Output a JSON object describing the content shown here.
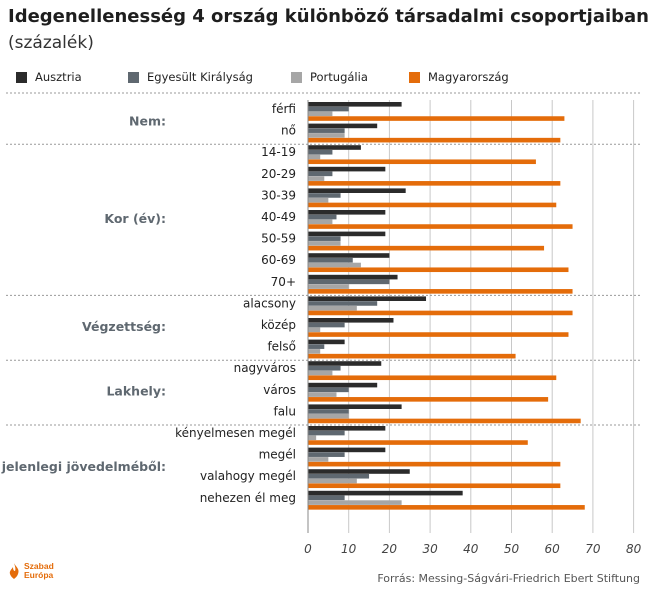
{
  "title": "Idegenellenesség 4 ország különböző társadalmi csoportjaiban",
  "subtitle": "(százalék)",
  "source": "Forrás: Messing-Ságvári-Friedrich Ebert Stiftung",
  "logo": {
    "line1": "Szabad",
    "line2": "Európa"
  },
  "chart_data": {
    "type": "bar",
    "orientation": "horizontal",
    "xlim": [
      0,
      80
    ],
    "xticks": [
      "0",
      "10",
      "20",
      "30",
      "40",
      "50",
      "60",
      "70",
      "80"
    ],
    "grid": true,
    "legend_position": "top",
    "series": [
      {
        "name": "Ausztria",
        "color": "#2b2b2b"
      },
      {
        "name": "Egyesült Királyság",
        "color": "#5f6870"
      },
      {
        "name": "Portugália",
        "color": "#a6a6a6"
      },
      {
        "name": "Magyarország",
        "color": "#e46c0a"
      }
    ],
    "groups": [
      {
        "label": "Nem:",
        "categories": [
          {
            "label": "férfi",
            "values": [
              23,
              10,
              6,
              63
            ]
          },
          {
            "label": "nő",
            "values": [
              17,
              9,
              9,
              62
            ]
          }
        ]
      },
      {
        "label": "Kor (év):",
        "categories": [
          {
            "label": "14-19",
            "values": [
              13,
              6,
              3,
              56
            ]
          },
          {
            "label": "20-29",
            "values": [
              19,
              6,
              4,
              62
            ]
          },
          {
            "label": "30-39",
            "values": [
              24,
              8,
              5,
              61
            ]
          },
          {
            "label": "40-49",
            "values": [
              19,
              7,
              6,
              65
            ]
          },
          {
            "label": "50-59",
            "values": [
              19,
              8,
              8,
              58
            ]
          },
          {
            "label": "60-69",
            "values": [
              20,
              11,
              13,
              64
            ]
          },
          {
            "label": "70+",
            "values": [
              22,
              20,
              10,
              65
            ]
          }
        ]
      },
      {
        "label": "Végzettség:",
        "categories": [
          {
            "label": "alacsony",
            "values": [
              29,
              17,
              12,
              65
            ]
          },
          {
            "label": "közép",
            "values": [
              21,
              9,
              3,
              64
            ]
          },
          {
            "label": "felső",
            "values": [
              9,
              4,
              3,
              51
            ]
          }
        ]
      },
      {
        "label": "Lakhely:",
        "categories": [
          {
            "label": "nagyváros",
            "values": [
              18,
              8,
              6,
              61
            ]
          },
          {
            "label": "város",
            "values": [
              17,
              10,
              7,
              59
            ]
          },
          {
            "label": "falu",
            "values": [
              23,
              10,
              10,
              67
            ]
          }
        ]
      },
      {
        "label": "A jelenlegi jövedelméből:",
        "categories": [
          {
            "label": "kényelmesen megél",
            "values": [
              19,
              9,
              2,
              54
            ]
          },
          {
            "label": "megél",
            "values": [
              19,
              9,
              5,
              62
            ]
          },
          {
            "label": "valahogy megél",
            "values": [
              25,
              15,
              12,
              62
            ]
          },
          {
            "label": "nehezen él meg",
            "values": [
              38,
              9,
              23,
              68
            ]
          }
        ]
      }
    ]
  }
}
